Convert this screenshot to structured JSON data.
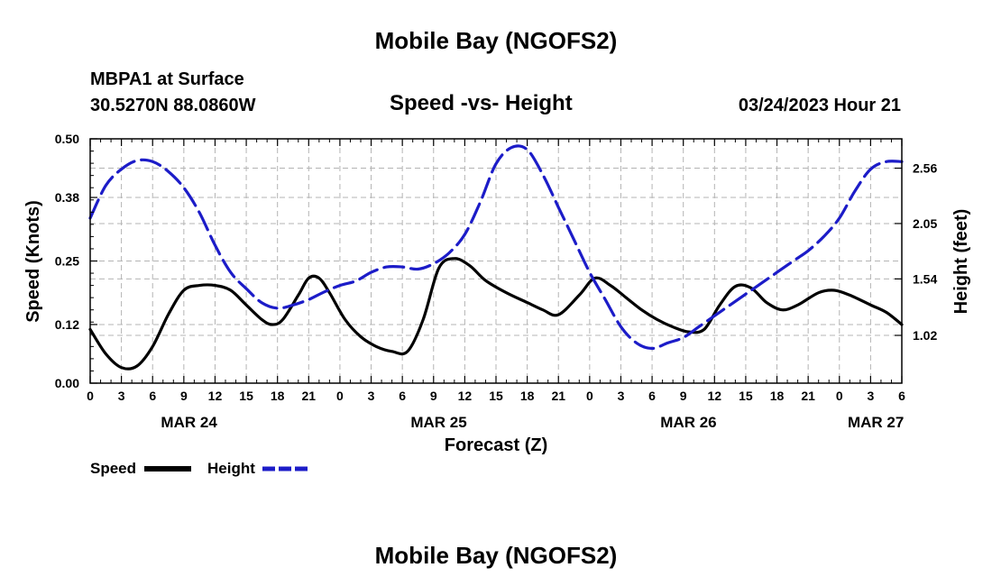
{
  "header": {
    "title": "Mobile Bay (NGOFS2)",
    "station": "MBPA1 at Surface",
    "coords": "30.5270N  88.0860W",
    "subtitle": "Speed -vs- Height",
    "datetime": "03/24/2023 Hour 21"
  },
  "footer": {
    "title": "Mobile Bay (NGOFS2)"
  },
  "legend": {
    "speed_label": "Speed",
    "height_label": "Height"
  },
  "colors": {
    "speed": "#000000",
    "height": "#1c1cc8",
    "grid": "#b4b4b4"
  },
  "chart_data": {
    "type": "line",
    "title": "Speed -vs- Height",
    "xlabel": "Forecast (Z)",
    "ylabel": "Speed (Knots)",
    "y2label": "Height (feet)",
    "xlim": [
      0,
      78
    ],
    "ylim": [
      0,
      0.5
    ],
    "y2lim": [
      0.58,
      2.83
    ],
    "x_ticks": [
      0,
      3,
      6,
      9,
      12,
      15,
      18,
      21,
      24,
      27,
      30,
      33,
      36,
      39,
      42,
      45,
      48,
      51,
      54,
      57,
      60,
      63,
      66,
      69,
      72,
      75,
      78
    ],
    "x_tick_labels": [
      "0",
      "3",
      "6",
      "9",
      "12",
      "15",
      "18",
      "21",
      "0",
      "3",
      "6",
      "9",
      "12",
      "15",
      "18",
      "21",
      "0",
      "3",
      "6",
      "9",
      "12",
      "15",
      "18",
      "21",
      "0",
      "3",
      "6"
    ],
    "date_labels": [
      {
        "x": 9.5,
        "label": "MAR 24"
      },
      {
        "x": 33.5,
        "label": "MAR 25"
      },
      {
        "x": 57.5,
        "label": "MAR 26"
      },
      {
        "x": 75.5,
        "label": "MAR 27"
      }
    ],
    "y_ticks": [
      0.0,
      0.12,
      0.25,
      0.38,
      0.5
    ],
    "y_tick_labels": [
      "0.00",
      "0.12",
      "0.25",
      "0.38",
      "0.50"
    ],
    "y2_ticks": [
      1.02,
      1.54,
      2.05,
      2.56
    ],
    "y2_tick_labels": [
      "1.02",
      "1.54",
      "2.05",
      "2.56"
    ],
    "grid": true,
    "series": [
      {
        "name": "Speed",
        "axis": "left",
        "style": "solid",
        "x": [
          0,
          1.5,
          3,
          4.5,
          6,
          7.5,
          9,
          10.5,
          12,
          13.5,
          15,
          16.5,
          17.5,
          18.5,
          20,
          21,
          22,
          23,
          24.5,
          26,
          27.5,
          29,
          30.5,
          32,
          33.5,
          35,
          36.5,
          38,
          40,
          42,
          43.5,
          45,
          47,
          48.5,
          50,
          51.5,
          53,
          54.5,
          56,
          57.5,
          59,
          60.5,
          62,
          63.5,
          65,
          66.5,
          68,
          70,
          71.5,
          73,
          75,
          76.5,
          78
        ],
        "values": [
          0.11,
          0.06,
          0.032,
          0.035,
          0.075,
          0.14,
          0.19,
          0.2,
          0.2,
          0.19,
          0.16,
          0.13,
          0.12,
          0.13,
          0.18,
          0.215,
          0.215,
          0.185,
          0.13,
          0.095,
          0.075,
          0.065,
          0.065,
          0.13,
          0.235,
          0.255,
          0.24,
          0.21,
          0.185,
          0.165,
          0.15,
          0.14,
          0.18,
          0.215,
          0.2,
          0.175,
          0.15,
          0.13,
          0.115,
          0.105,
          0.11,
          0.16,
          0.198,
          0.195,
          0.165,
          0.15,
          0.16,
          0.185,
          0.19,
          0.18,
          0.16,
          0.145,
          0.12
        ]
      },
      {
        "name": "Height",
        "axis": "right",
        "style": "dashed",
        "x": [
          0,
          1.5,
          3,
          4.5,
          6,
          7.5,
          9,
          10.5,
          12,
          13.5,
          15,
          16.5,
          18,
          19.5,
          21,
          22.5,
          24,
          25.5,
          27,
          28.5,
          30,
          31.5,
          33,
          34.5,
          36,
          37.5,
          39,
          40.5,
          42,
          43.5,
          45,
          46.5,
          48,
          49.5,
          51,
          52.5,
          54,
          55.5,
          57,
          58.5,
          60,
          61.5,
          63,
          64.5,
          66,
          67.5,
          69,
          70.5,
          72,
          73.5,
          75,
          76.5,
          78
        ],
        "values": [
          2.1,
          2.4,
          2.55,
          2.63,
          2.62,
          2.53,
          2.38,
          2.15,
          1.85,
          1.6,
          1.45,
          1.32,
          1.27,
          1.3,
          1.35,
          1.42,
          1.48,
          1.52,
          1.6,
          1.65,
          1.65,
          1.63,
          1.68,
          1.78,
          1.95,
          2.25,
          2.6,
          2.75,
          2.73,
          2.5,
          2.2,
          1.9,
          1.6,
          1.35,
          1.1,
          0.95,
          0.9,
          0.95,
          1.0,
          1.1,
          1.2,
          1.3,
          1.4,
          1.5,
          1.6,
          1.7,
          1.8,
          1.93,
          2.1,
          2.35,
          2.55,
          2.62,
          2.62
        ]
      }
    ]
  }
}
